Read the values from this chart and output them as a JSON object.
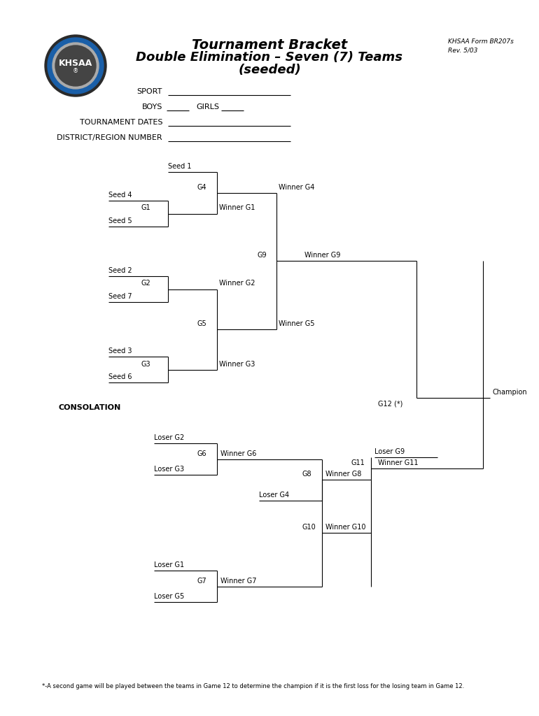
{
  "title_line1": "Tournament Bracket",
  "title_line2": "Double Elimination – Seven (7) Teams",
  "title_line3": "(seeded)",
  "form_ref1": "KHSAA Form BR207s",
  "form_ref2": "Rev. 5/03",
  "footnote": "*-A second game will be played between the teams in Game 12 to determine the champion if it is the first loss for the losing team in Game 12.",
  "bg_color": "#ffffff"
}
